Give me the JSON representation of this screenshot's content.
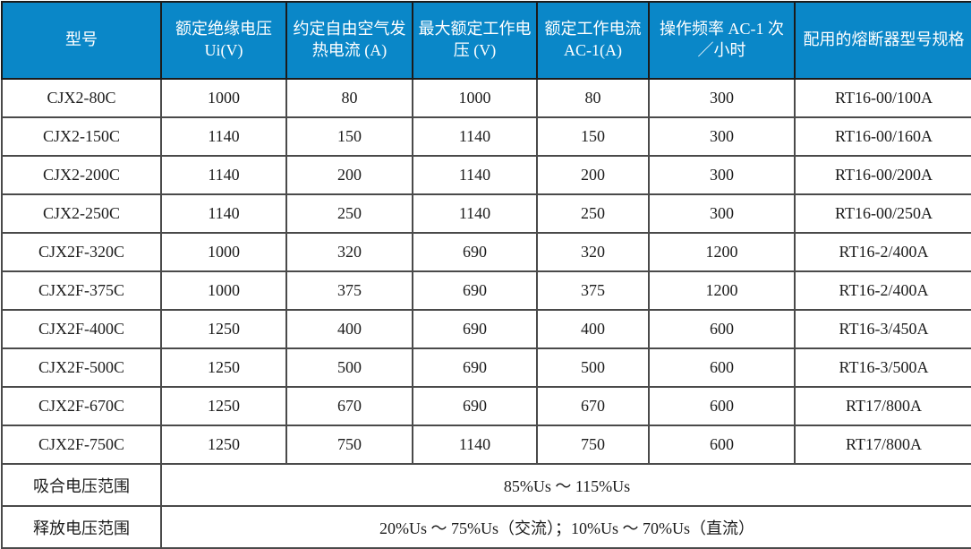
{
  "table": {
    "columns": [
      "型号",
      "额定绝缘电压 Ui(V)",
      "约定自由空气发热电流 (A)",
      "最大额定工作电压 (V)",
      "额定工作电流 AC-1(A)",
      "操作频率 AC-1 次／小时",
      "配用的熔断器型号规格"
    ],
    "rows": [
      [
        "CJX2-80C",
        "1000",
        "80",
        "1000",
        "80",
        "300",
        "RT16-00/100A"
      ],
      [
        "CJX2-150C",
        "1140",
        "150",
        "1140",
        "150",
        "300",
        "RT16-00/160A"
      ],
      [
        "CJX2-200C",
        "1140",
        "200",
        "1140",
        "200",
        "300",
        "RT16-00/200A"
      ],
      [
        "CJX2-250C",
        "1140",
        "250",
        "1140",
        "250",
        "300",
        "RT16-00/250A"
      ],
      [
        "CJX2F-320C",
        "1000",
        "320",
        "690",
        "320",
        "1200",
        "RT16-2/400A"
      ],
      [
        "CJX2F-375C",
        "1000",
        "375",
        "690",
        "375",
        "1200",
        "RT16-2/400A"
      ],
      [
        "CJX2F-400C",
        "1250",
        "400",
        "690",
        "400",
        "600",
        "RT16-3/450A"
      ],
      [
        "CJX2F-500C",
        "1250",
        "500",
        "690",
        "500",
        "600",
        "RT16-3/500A"
      ],
      [
        "CJX2F-670C",
        "1250",
        "670",
        "690",
        "670",
        "600",
        "RT17/800A"
      ],
      [
        "CJX2F-750C",
        "1250",
        "750",
        "1140",
        "750",
        "600",
        "RT17/800A"
      ]
    ],
    "footer_rows": [
      {
        "label": "吸合电压范围",
        "value": "85%Us ～ 115%Us"
      },
      {
        "label": "释放电压范围",
        "value": "20%Us ～ 75%Us（交流）；10%Us ～ 70%Us（直流）"
      }
    ],
    "colors": {
      "header_bg": "#0a87c8",
      "header_text": "#ffffff",
      "inner_border": "#4a4a4a",
      "outer_border": "#141414",
      "cell_text": "#1c1c1c"
    }
  }
}
